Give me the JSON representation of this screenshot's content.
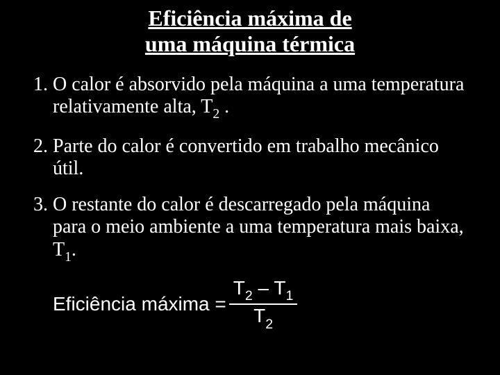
{
  "title_line1": "Eficiência máxima de",
  "title_line2": "uma máquina térmica",
  "item1_num": "1.",
  "item1_a": "O calor é absorvido pela máquina a uma temperatura relativamente alta, T",
  "item1_sub": "2",
  "item1_b": " .",
  "item2_num": "2.",
  "item2_a": "Parte do calor é convertido em trabalho mecânico útil.",
  "item3_num": "3.",
  "item3_a": "O restante do calor é descarregado pela máquina para o meio ambiente a uma temperatura mais baixa, T",
  "item3_sub": "1",
  "item3_b": ".",
  "formula_label": "Eficiência máxima = ",
  "numer_t1": "T",
  "numer_s1": "2",
  "numer_mid": " – T",
  "numer_s2": "1",
  "denom_t": "T",
  "denom_s": "2"
}
